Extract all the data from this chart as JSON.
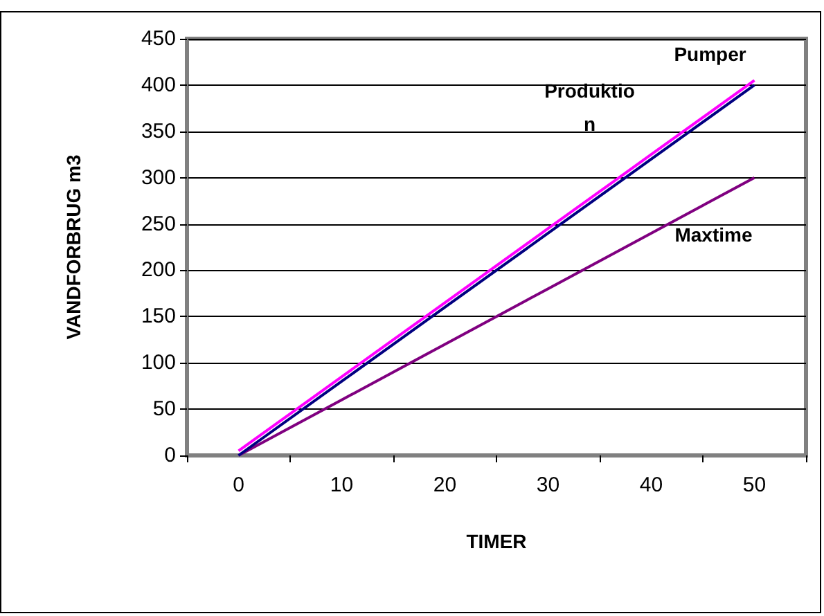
{
  "chart_data": {
    "type": "line",
    "xlabel": "TIMER",
    "ylabel": "VANDFORBRUG m3",
    "categories": [
      "0",
      "10",
      "20",
      "30",
      "40",
      "50"
    ],
    "series": [
      {
        "name": "Produktion",
        "color": "#000080",
        "values": [
          0,
          80,
          160,
          240,
          320,
          400
        ]
      },
      {
        "name": "Pumper",
        "color": "#ff00ff",
        "values": [
          5,
          85,
          165,
          245,
          325,
          405
        ]
      },
      {
        "name": "Maxtime",
        "color": "#800080",
        "values": [
          0,
          60,
          120,
          180,
          240,
          300
        ]
      }
    ],
    "ylim": [
      0,
      450
    ],
    "yticks": [
      0,
      50,
      100,
      150,
      200,
      250,
      300,
      350,
      400,
      450
    ],
    "grid": "y",
    "legend": false,
    "marker": "none",
    "line_style": "solid"
  }
}
